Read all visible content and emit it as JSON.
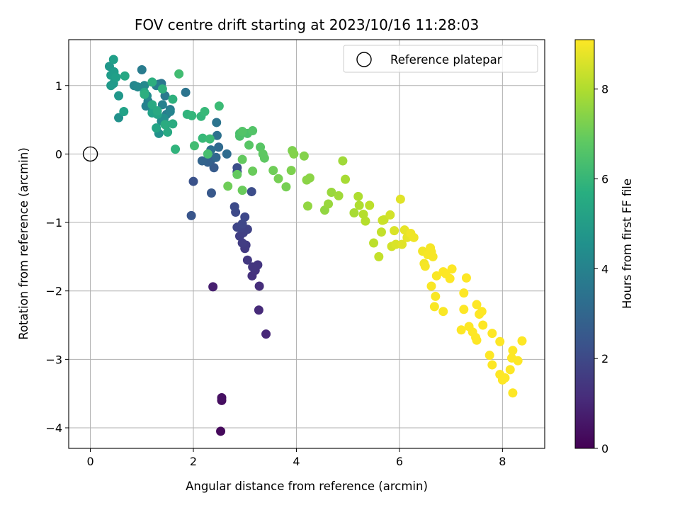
{
  "chart_data": {
    "type": "scatter",
    "title": "FOV centre drift starting at 2023/10/16 11:28:03",
    "xlabel": "Angular distance from reference (arcmin)",
    "ylabel": "Rotation from reference (arcmin)",
    "xlim": [
      -0.42,
      8.82
    ],
    "ylim": [
      -4.3,
      1.67
    ],
    "xticks": [
      "0",
      "2",
      "4",
      "6",
      "8"
    ],
    "yticks": [
      "−4",
      "−3",
      "−2",
      "−1",
      "0",
      "1"
    ],
    "grid": true,
    "legend": {
      "location": "upper right",
      "entries": [
        "Reference platepar"
      ]
    },
    "colorbar": {
      "label": "Hours from first FF file",
      "range": [
        0,
        9.1
      ],
      "ticks": [
        "0",
        "2",
        "4",
        "6",
        "8"
      ],
      "colormap": "viridis"
    },
    "reference_point": {
      "x": 0,
      "y": 0
    },
    "point_fields": [
      "x",
      "y",
      "hours"
    ],
    "points": [
      [
        2.53,
        -4.05,
        0.2
      ],
      [
        2.55,
        -3.6,
        0.3
      ],
      [
        2.55,
        -3.56,
        0.4
      ],
      [
        2.38,
        -1.94,
        0.8
      ],
      [
        3.41,
        -2.63,
        1.0
      ],
      [
        3.27,
        -2.28,
        1.1
      ],
      [
        3.28,
        -1.93,
        1.2
      ],
      [
        3.14,
        -1.78,
        1.3
      ],
      [
        3.2,
        -1.7,
        1.35
      ],
      [
        3.25,
        -1.62,
        1.4
      ],
      [
        3.15,
        -1.65,
        1.45
      ],
      [
        3.05,
        -1.55,
        1.5
      ],
      [
        3.0,
        -1.38,
        1.55
      ],
      [
        3.02,
        -1.33,
        1.6
      ],
      [
        2.95,
        -1.3,
        1.65
      ],
      [
        2.9,
        -1.2,
        1.7
      ],
      [
        2.97,
        -1.15,
        1.75
      ],
      [
        3.05,
        -1.1,
        1.8
      ],
      [
        2.92,
        -1.08,
        1.85
      ],
      [
        2.85,
        -1.07,
        1.9
      ],
      [
        2.95,
        -1.02,
        1.95
      ],
      [
        3.0,
        -0.92,
        2.0
      ],
      [
        2.82,
        -0.85,
        2.05
      ],
      [
        2.8,
        -0.77,
        2.1
      ],
      [
        3.13,
        -0.55,
        2.15
      ],
      [
        2.85,
        -0.2,
        2.2
      ],
      [
        2.85,
        -0.26,
        2.25
      ],
      [
        2.0,
        -0.4,
        2.3
      ],
      [
        1.96,
        -0.9,
        2.4
      ],
      [
        2.35,
        -0.57,
        2.5
      ],
      [
        2.4,
        -0.2,
        2.6
      ],
      [
        2.35,
        -0.08,
        2.7
      ],
      [
        2.28,
        -0.12,
        2.8
      ],
      [
        2.17,
        -0.1,
        2.9
      ],
      [
        2.44,
        -0.05,
        3.0
      ],
      [
        2.49,
        0.1,
        3.1
      ],
      [
        2.65,
        0.0,
        3.2
      ],
      [
        2.34,
        0.06,
        3.3
      ],
      [
        2.46,
        0.27,
        3.4
      ],
      [
        2.45,
        0.46,
        3.5
      ],
      [
        1.85,
        0.9,
        3.5
      ],
      [
        1.33,
        1.02,
        3.6
      ],
      [
        1.38,
        1.03,
        3.6
      ],
      [
        1.45,
        0.85,
        3.7
      ],
      [
        1.55,
        0.65,
        3.7
      ],
      [
        1.48,
        0.58,
        3.8
      ],
      [
        1.0,
        1.23,
        3.8
      ],
      [
        1.28,
        1.0,
        3.9
      ],
      [
        1.12,
        0.77,
        3.9
      ],
      [
        1.08,
        0.7,
        4.0
      ],
      [
        1.4,
        0.72,
        4.0
      ],
      [
        1.55,
        0.62,
        4.1
      ],
      [
        1.2,
        0.66,
        4.1
      ],
      [
        0.85,
        1.0,
        4.2
      ],
      [
        0.92,
        0.98,
        4.3
      ],
      [
        1.05,
        1.0,
        4.3
      ],
      [
        1.1,
        0.85,
        4.4
      ],
      [
        1.38,
        0.48,
        4.4
      ],
      [
        1.43,
        0.52,
        4.5
      ],
      [
        0.55,
        0.53,
        4.6
      ],
      [
        1.33,
        0.3,
        4.6
      ],
      [
        1.47,
        0.43,
        4.7
      ],
      [
        0.37,
        1.28,
        4.8
      ],
      [
        0.55,
        0.85,
        4.8
      ],
      [
        0.4,
        1.0,
        4.9
      ],
      [
        0.45,
        1.03,
        4.9
      ],
      [
        0.4,
        1.15,
        5.0
      ],
      [
        0.46,
        1.2,
        5.0
      ],
      [
        0.45,
        1.38,
        5.1
      ],
      [
        0.5,
        1.12,
        5.1
      ],
      [
        0.65,
        0.62,
        5.2
      ],
      [
        1.2,
        0.6,
        5.2
      ],
      [
        1.28,
        0.38,
        5.3
      ],
      [
        1.3,
        0.58,
        5.3
      ],
      [
        0.67,
        1.14,
        5.4
      ],
      [
        1.05,
        0.9,
        5.4
      ],
      [
        1.2,
        0.72,
        5.5
      ],
      [
        1.3,
        0.63,
        5.5
      ],
      [
        1.5,
        0.32,
        5.5
      ],
      [
        1.45,
        0.43,
        5.6
      ],
      [
        1.6,
        0.44,
        5.6
      ],
      [
        1.05,
        0.87,
        5.7
      ],
      [
        1.2,
        1.05,
        5.7
      ],
      [
        1.4,
        0.95,
        5.8
      ],
      [
        1.6,
        0.8,
        5.8
      ],
      [
        1.65,
        0.07,
        5.9
      ],
      [
        1.88,
        0.58,
        5.9
      ],
      [
        1.97,
        0.56,
        6.0
      ],
      [
        2.15,
        0.55,
        6.0
      ],
      [
        2.22,
        0.62,
        6.1
      ],
      [
        2.18,
        0.23,
        6.1
      ],
      [
        2.32,
        0.22,
        6.2
      ],
      [
        2.5,
        0.7,
        6.2
      ],
      [
        2.02,
        0.12,
        6.3
      ],
      [
        1.72,
        1.17,
        6.3
      ],
      [
        2.28,
        0.0,
        6.4
      ],
      [
        2.9,
        0.3,
        6.4
      ],
      [
        2.9,
        0.26,
        6.5
      ],
      [
        3.05,
        0.3,
        6.5
      ],
      [
        3.15,
        0.34,
        6.6
      ],
      [
        2.95,
        0.33,
        6.6
      ],
      [
        3.08,
        0.13,
        6.7
      ],
      [
        3.3,
        0.1,
        6.7
      ],
      [
        3.35,
        0.0,
        6.8
      ],
      [
        3.38,
        -0.06,
        6.8
      ],
      [
        2.95,
        -0.08,
        6.9
      ],
      [
        2.85,
        -0.3,
        6.9
      ],
      [
        2.95,
        -0.53,
        7.0
      ],
      [
        3.15,
        -0.25,
        7.0
      ],
      [
        2.67,
        -0.47,
        7.1
      ],
      [
        3.55,
        -0.24,
        7.1
      ],
      [
        3.65,
        -0.36,
        7.2
      ],
      [
        3.8,
        -0.48,
        7.2
      ],
      [
        3.9,
        -0.24,
        7.3
      ],
      [
        3.92,
        0.05,
        7.3
      ],
      [
        3.95,
        0.0,
        7.4
      ],
      [
        4.15,
        -0.03,
        7.4
      ],
      [
        4.2,
        -0.38,
        7.5
      ],
      [
        4.26,
        -0.35,
        7.5
      ],
      [
        4.22,
        -0.76,
        7.6
      ],
      [
        4.55,
        -0.82,
        7.6
      ],
      [
        4.62,
        -0.73,
        7.7
      ],
      [
        4.68,
        -0.56,
        7.7
      ],
      [
        4.82,
        -0.61,
        7.8
      ],
      [
        4.9,
        -0.1,
        7.8
      ],
      [
        4.95,
        -0.37,
        7.9
      ],
      [
        5.12,
        -0.86,
        7.9
      ],
      [
        5.2,
        -0.62,
        8.0
      ],
      [
        5.22,
        -0.75,
        8.0
      ],
      [
        5.3,
        -0.88,
        8.1
      ],
      [
        5.34,
        -0.98,
        8.1
      ],
      [
        5.42,
        -0.75,
        8.2
      ],
      [
        5.5,
        -1.3,
        8.2
      ],
      [
        5.6,
        -1.5,
        8.3
      ],
      [
        5.65,
        -1.14,
        8.3
      ],
      [
        5.67,
        -0.97,
        8.4
      ],
      [
        5.7,
        -0.96,
        8.4
      ],
      [
        5.82,
        -0.89,
        8.5
      ],
      [
        5.85,
        -1.35,
        8.5
      ],
      [
        5.93,
        -1.32,
        8.6
      ],
      [
        5.9,
        -1.12,
        8.6
      ],
      [
        6.02,
        -0.66,
        8.7
      ],
      [
        6.05,
        -1.32,
        8.7
      ],
      [
        6.1,
        -1.11,
        8.8
      ],
      [
        6.15,
        -1.22,
        8.8
      ],
      [
        6.22,
        -1.16,
        8.9
      ],
      [
        6.28,
        -1.22,
        8.9
      ],
      [
        6.45,
        -1.42,
        8.95
      ],
      [
        6.48,
        -1.6,
        8.95
      ],
      [
        6.5,
        -1.64,
        9.0
      ],
      [
        6.6,
        -1.37,
        9.0
      ],
      [
        6.65,
        -1.5,
        9.0
      ],
      [
        6.55,
        -1.47,
        9.0
      ],
      [
        6.62,
        -1.43,
        9.0
      ],
      [
        6.72,
        -1.78,
        9.05
      ],
      [
        6.62,
        -1.93,
        9.05
      ],
      [
        6.85,
        -2.3,
        9.05
      ],
      [
        6.7,
        -2.08,
        9.05
      ],
      [
        6.68,
        -2.23,
        9.05
      ],
      [
        6.85,
        -1.72,
        9.1
      ],
      [
        6.9,
        -1.75,
        9.1
      ],
      [
        6.98,
        -1.82,
        9.1
      ],
      [
        7.02,
        -1.68,
        9.1
      ],
      [
        7.2,
        -2.57,
        9.1
      ],
      [
        7.25,
        -2.03,
        9.1
      ],
      [
        7.25,
        -2.27,
        9.1
      ],
      [
        7.3,
        -1.81,
        9.1
      ],
      [
        7.35,
        -2.52,
        9.1
      ],
      [
        7.42,
        -2.6,
        9.1
      ],
      [
        7.48,
        -2.68,
        9.1
      ],
      [
        7.5,
        -2.72,
        9.1
      ],
      [
        7.5,
        -2.2,
        9.1
      ],
      [
        7.55,
        -2.34,
        9.1
      ],
      [
        7.6,
        -2.3,
        9.1
      ],
      [
        7.62,
        -2.5,
        9.1
      ],
      [
        7.75,
        -2.94,
        9.1
      ],
      [
        7.8,
        -3.08,
        9.1
      ],
      [
        7.8,
        -2.62,
        9.1
      ],
      [
        7.95,
        -2.74,
        9.1
      ],
      [
        7.95,
        -3.22,
        9.1
      ],
      [
        8.0,
        -3.3,
        9.1
      ],
      [
        8.05,
        -3.27,
        9.1
      ],
      [
        8.15,
        -3.15,
        9.1
      ],
      [
        8.18,
        -2.98,
        9.1
      ],
      [
        8.2,
        -2.87,
        9.1
      ],
      [
        8.2,
        -3.49,
        9.1
      ],
      [
        8.3,
        -3.02,
        9.1
      ],
      [
        8.38,
        -2.73,
        9.1
      ]
    ]
  }
}
